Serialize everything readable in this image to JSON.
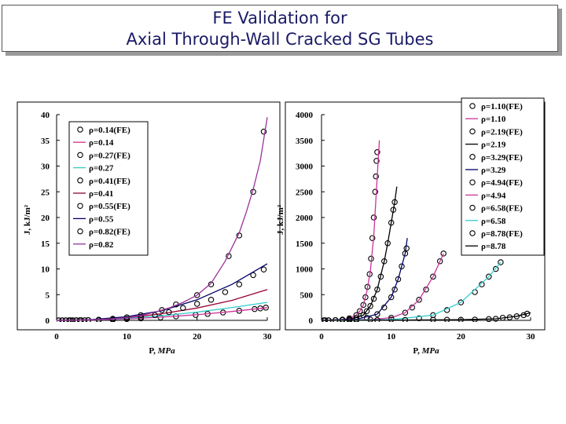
{
  "title": {
    "line1": "FE Validation for",
    "line2": "Axial Through-Wall Cracked SG Tubes"
  },
  "chart_data": [
    {
      "type": "scatter",
      "title": "",
      "xlabel": "P, MPa",
      "ylabel": "J, kJ/m²",
      "xlim": [
        0,
        30
      ],
      "ylim": [
        0,
        40
      ],
      "xticks": [
        "0",
        "10",
        "20",
        "30"
      ],
      "yticks": [
        "0",
        "5",
        "10",
        "15",
        "20",
        "25",
        "30",
        "35",
        "40"
      ],
      "legend_position": "top-left",
      "series": [
        {
          "name": "ρ=0.14(FE)",
          "kind": "markers",
          "color": "#000000",
          "x": [
            0.3,
            0.8,
            1.3,
            1.8,
            2.3,
            2.8,
            3.5,
            4.5,
            6,
            8,
            10,
            12,
            14.8,
            17,
            19.8,
            21.5,
            23.7,
            26,
            28.2,
            29,
            29.8
          ],
          "y": [
            0,
            0,
            0,
            0,
            0,
            0.01,
            0.02,
            0.04,
            0.09,
            0.16,
            0.26,
            0.38,
            0.58,
            0.78,
            1.05,
            1.25,
            1.52,
            1.86,
            2.2,
            2.34,
            2.48
          ]
        },
        {
          "name": "ρ=0.14",
          "kind": "line",
          "color": "#cc3399",
          "x": [
            0,
            5,
            10,
            15,
            20,
            25,
            30
          ],
          "y": [
            0,
            0.07,
            0.28,
            0.62,
            1.1,
            1.72,
            2.48
          ]
        },
        {
          "name": "ρ=0.27(FE)",
          "kind": "markers",
          "color": "#000000",
          "x": [],
          "y": []
        },
        {
          "name": "ρ=0.27",
          "kind": "line",
          "color": "#33cccc",
          "x": [
            0,
            5,
            10,
            15,
            20,
            25,
            30
          ],
          "y": [
            0,
            0.1,
            0.4,
            0.9,
            1.6,
            2.5,
            3.5
          ]
        },
        {
          "name": "ρ=0.41(FE)",
          "kind": "markers",
          "color": "#000000",
          "x": [],
          "y": []
        },
        {
          "name": "ρ=0.41",
          "kind": "line",
          "color": "#990033",
          "x": [
            0,
            5,
            10,
            15,
            20,
            25,
            30
          ],
          "y": [
            0,
            0.12,
            0.5,
            1.3,
            2.4,
            3.9,
            6.0
          ]
        },
        {
          "name": "ρ=0.55(FE)",
          "kind": "markers",
          "color": "#000000",
          "x": [
            2,
            4,
            6,
            8,
            10,
            12,
            14,
            16,
            18,
            20,
            22,
            24,
            26,
            28,
            29.5
          ],
          "y": [
            0,
            0.02,
            0.05,
            0.12,
            0.3,
            0.6,
            1.0,
            1.6,
            2.4,
            3.2,
            4.0,
            5.5,
            7.0,
            8.8,
            9.9
          ]
        },
        {
          "name": "ρ=0.55",
          "kind": "line",
          "color": "#000066",
          "x": [
            0,
            5,
            10,
            15,
            20,
            25,
            30
          ],
          "y": [
            0,
            0.15,
            0.7,
            1.9,
            4.0,
            7.0,
            11.0
          ]
        },
        {
          "name": "ρ=0.82(FE)",
          "kind": "markers",
          "color": "#000000",
          "x": [
            0.3,
            0.8,
            1.3,
            1.8,
            2.3,
            2.8,
            3.3,
            4.5,
            6,
            8,
            10,
            12,
            15,
            17,
            20,
            22,
            24.5,
            26,
            28,
            29.5
          ],
          "y": [
            0,
            0,
            0,
            0,
            0,
            0,
            0.01,
            0.05,
            0.12,
            0.3,
            0.6,
            1.0,
            2.0,
            3.1,
            4.9,
            7.0,
            12.5,
            16.5,
            25.0,
            36.7
          ]
        },
        {
          "name": "ρ=0.82",
          "kind": "line",
          "color": "#993399",
          "x": [
            0,
            5,
            8,
            10,
            12,
            14,
            16,
            18,
            20,
            22,
            24,
            26,
            27,
            28,
            29,
            30
          ],
          "y": [
            0,
            0.1,
            0.3,
            0.55,
            0.95,
            1.6,
            2.4,
            3.5,
            4.9,
            7.2,
            11.5,
            17.0,
            21.0,
            25.5,
            31.0,
            39.5
          ]
        }
      ]
    },
    {
      "type": "scatter",
      "title": "",
      "xlabel": "P, MPa",
      "ylabel": "J, kJ/m²",
      "xlim": [
        0,
        30
      ],
      "ylim": [
        0,
        4000
      ],
      "xticks": [
        "0",
        "10",
        "20",
        "30"
      ],
      "yticks": [
        "0",
        "500",
        "1000",
        "1500",
        "2000",
        "2500",
        "3000",
        "3500",
        "4000"
      ],
      "legend_position": "top-right",
      "series": [
        {
          "name": "ρ=1.10(FE)",
          "kind": "markers",
          "color": "#000000",
          "x": [
            0.3,
            1,
            2,
            3,
            4,
            5,
            5.5,
            6,
            6.3,
            6.6,
            6.9,
            7.1,
            7.3,
            7.5,
            7.7,
            7.8,
            7.9,
            8.0
          ],
          "y": [
            0,
            0,
            5,
            15,
            40,
            100,
            180,
            300,
            450,
            650,
            900,
            1200,
            1600,
            2000,
            2500,
            2800,
            3100,
            3270
          ]
        },
        {
          "name": "ρ=1.10",
          "kind": "line",
          "color": "#cc3399",
          "x": [
            0,
            3,
            4,
            5,
            5.5,
            6,
            6.5,
            7,
            7.5,
            8,
            8.3
          ],
          "y": [
            0,
            15,
            40,
            100,
            180,
            300,
            560,
            950,
            1650,
            2800,
            3500
          ]
        },
        {
          "name": "ρ=2.19(FE)",
          "kind": "markers",
          "color": "#000000",
          "x": [
            0.5,
            2,
            4,
            5,
            6,
            6.5,
            7,
            7.5,
            8,
            8.5,
            9,
            9.5,
            10,
            10.3,
            10.5
          ],
          "y": [
            0,
            5,
            20,
            50,
            100,
            180,
            280,
            420,
            600,
            850,
            1150,
            1500,
            1900,
            2150,
            2300
          ]
        },
        {
          "name": "ρ=2.19",
          "kind": "line",
          "color": "#000000",
          "x": [
            0,
            4,
            6,
            7,
            8,
            9,
            9.5,
            10,
            10.5,
            10.8
          ],
          "y": [
            0,
            20,
            100,
            280,
            600,
            1150,
            1500,
            1900,
            2300,
            2600
          ]
        },
        {
          "name": "ρ=3.29(FE)",
          "kind": "markers",
          "color": "#000000",
          "x": [
            0.5,
            3,
            5,
            6.5,
            8,
            9,
            10,
            10.5,
            11,
            11.5,
            12,
            12.2
          ],
          "y": [
            0,
            5,
            20,
            50,
            120,
            250,
            450,
            600,
            800,
            1050,
            1300,
            1400
          ]
        },
        {
          "name": "ρ=3.29",
          "kind": "line",
          "color": "#000066",
          "x": [
            0,
            5,
            8,
            10,
            11,
            12,
            12.3
          ],
          "y": [
            0,
            20,
            120,
            450,
            800,
            1300,
            1600
          ]
        },
        {
          "name": "ρ=4.94(FE)",
          "kind": "markers",
          "color": "#000000",
          "x": [
            0.5,
            4,
            7,
            10,
            12,
            13,
            14,
            15,
            16,
            17,
            17.5
          ],
          "y": [
            0,
            5,
            15,
            50,
            150,
            250,
            400,
            600,
            850,
            1150,
            1300
          ]
        },
        {
          "name": "ρ=4.94",
          "kind": "line",
          "color": "#cc3399",
          "x": [
            0,
            7,
            10,
            12,
            14,
            16,
            17.5
          ],
          "y": [
            0,
            15,
            50,
            150,
            400,
            850,
            1300
          ]
        },
        {
          "name": "ρ=6.58(FE)",
          "kind": "markers",
          "color": "#000000",
          "x": [
            1,
            5,
            10,
            14,
            16,
            18,
            20,
            22,
            23,
            24,
            25,
            25.7
          ],
          "y": [
            0,
            5,
            15,
            40,
            100,
            200,
            350,
            550,
            700,
            850,
            1000,
            1130
          ]
        },
        {
          "name": "ρ=6.58",
          "kind": "line",
          "color": "#33cccc",
          "x": [
            0,
            10,
            16,
            20,
            24,
            25.7
          ],
          "y": [
            0,
            15,
            100,
            350,
            850,
            1130
          ]
        },
        {
          "name": "ρ=8.78(FE)",
          "kind": "markers",
          "color": "#000000",
          "x": [
            1,
            4,
            8,
            12,
            16,
            18,
            20,
            22,
            24,
            25,
            26,
            27,
            28,
            29,
            29.5
          ],
          "y": [
            0,
            2,
            5,
            8,
            10,
            10,
            12,
            15,
            25,
            30,
            50,
            60,
            80,
            100,
            130
          ]
        },
        {
          "name": "ρ=8.78",
          "kind": "line",
          "color": "#000000",
          "x": [
            0,
            10,
            20,
            25,
            28,
            30
          ],
          "y": [
            0,
            5,
            12,
            30,
            80,
            150
          ]
        }
      ]
    }
  ]
}
